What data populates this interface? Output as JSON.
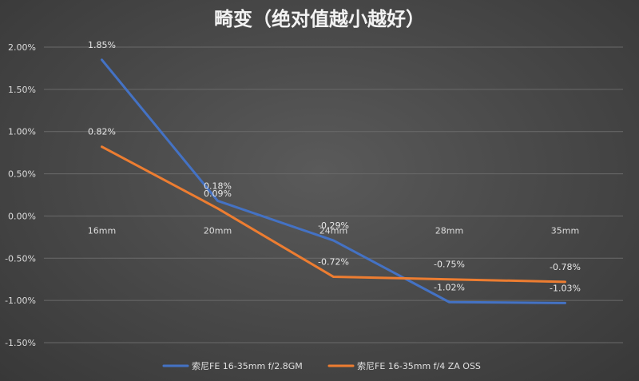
{
  "chart_data": {
    "type": "line",
    "title": "畸变（绝对值越小越好）",
    "categories": [
      "16mm",
      "20mm",
      "24mm",
      "28mm",
      "35mm"
    ],
    "ylim": [
      -1.5,
      2.0
    ],
    "yticks": [
      "2.00%",
      "1.50%",
      "1.00%",
      "0.50%",
      "0.00%",
      "-0.50%",
      "-1.00%",
      "-1.50%"
    ],
    "ytick_values": [
      2.0,
      1.5,
      1.0,
      0.5,
      0.0,
      -0.5,
      -1.0,
      -1.5
    ],
    "grid": true,
    "legend_position": "bottom",
    "series": [
      {
        "name": "索尼FE 16-35mm f/2.8GM",
        "color": "#4472c4",
        "values": [
          1.85,
          0.18,
          -0.29,
          -1.02,
          -1.03
        ],
        "labels": [
          "1.85%",
          "0.18%",
          "-0.29%",
          "-1.02%",
          "-1.03%"
        ]
      },
      {
        "name": "索尼FE 16-35mm f/4 ZA OSS",
        "color": "#ed7d31",
        "values": [
          0.82,
          0.09,
          -0.72,
          -0.75,
          -0.78
        ],
        "labels": [
          "0.82%",
          "0.09%",
          "-0.72%",
          "-0.75%",
          "-0.78%"
        ]
      }
    ]
  }
}
